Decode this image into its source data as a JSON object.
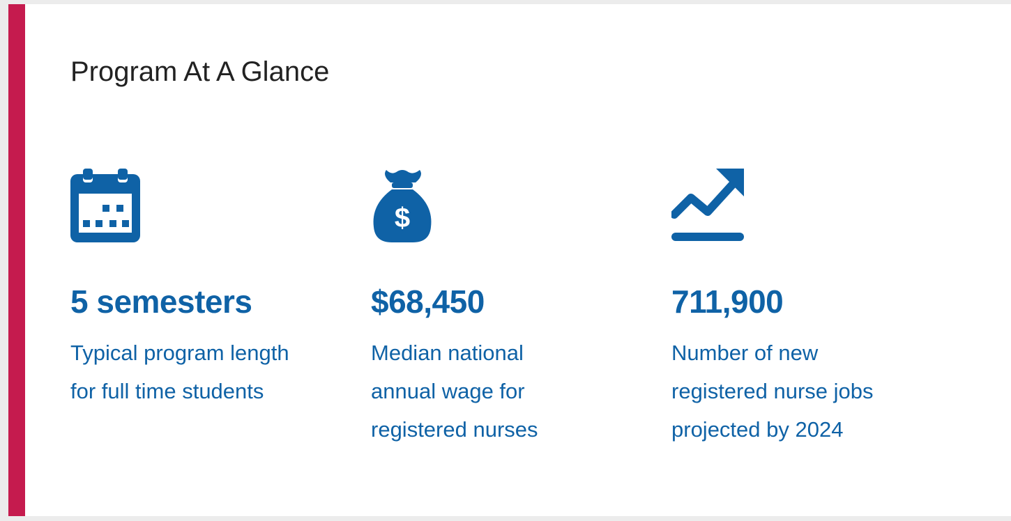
{
  "colors": {
    "accent": "#c51b4e",
    "brand": "#0f62a6",
    "title_text": "#222222",
    "background": "#ffffff"
  },
  "section": {
    "title": "Program At A Glance"
  },
  "stats": [
    {
      "icon": "calendar-icon",
      "value": "5 semesters",
      "description_lines": [
        "Typical program length",
        "for full time students"
      ]
    },
    {
      "icon": "money-bag-icon",
      "value": "$68,450",
      "description_lines": [
        "Median national",
        "annual wage for",
        "registered nurses"
      ]
    },
    {
      "icon": "trending-up-icon",
      "value": "711,900",
      "description_lines": [
        "Number of new",
        "registered nurse jobs",
        "projected by 2024"
      ]
    }
  ]
}
